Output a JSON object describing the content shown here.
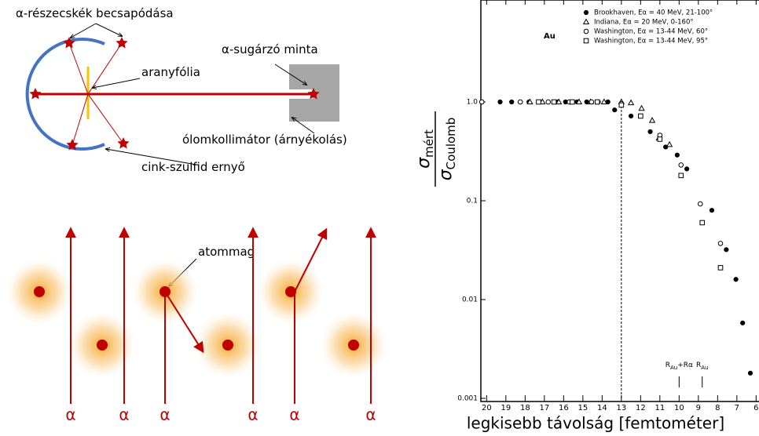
{
  "diagram": {
    "labels": {
      "impacts": "α-részecskék becsapódása",
      "foil": "aranyfólia",
      "source": "α-sugárzó minta",
      "collimator": "ólomkollimátor (árnyékolás)",
      "screen": "cink-szulfid ernyő",
      "nucleus": "atommag"
    },
    "alpha": [
      "α",
      "α",
      "α",
      "α",
      "α",
      "α"
    ]
  },
  "chart_data": {
    "type": "scatter",
    "x_label": "legkisebb távolság [femtométer]",
    "y_label": {
      "top": "σ",
      "top_sub": "mért",
      "bottom": "σ",
      "bottom_sub": "Coulomb"
    },
    "annotations": [
      {
        "text": "Au"
      },
      {
        "parts": [
          "R",
          "Au",
          "+Rα"
        ],
        "x": 10
      },
      {
        "parts": [
          "R",
          "Au"
        ],
        "x": 8.8
      }
    ],
    "xlim": [
      20.3,
      5.85
    ],
    "ylim": [
      0.001,
      10
    ],
    "log_y": true,
    "xticks": [
      20,
      19,
      18,
      17,
      16,
      15,
      14,
      13,
      12,
      11,
      10,
      9,
      8,
      7,
      6
    ],
    "yticks": [
      {
        "value": 1,
        "label": "1.0"
      },
      0.1,
      0.01,
      0.001
    ],
    "reference_x": 13,
    "series": [
      {
        "name": "Brookhaven, Eα = 40 MeV, 21-100°",
        "marker": "filled-circle",
        "color": "#000000",
        "x": [
          19.3,
          18.7,
          17.8,
          17.3,
          16.3,
          15.9,
          15.3,
          14.8,
          14.2,
          13.7,
          13.35,
          12.5,
          11.5,
          10.7,
          10.1,
          9.6,
          8.3,
          7.55,
          7.05,
          6.7,
          6.3
        ],
        "values": [
          1,
          1,
          1,
          1,
          1,
          1,
          1,
          1,
          1,
          1,
          0.83,
          0.72,
          0.5,
          0.35,
          0.29,
          0.21,
          0.08,
          0.032,
          0.016,
          0.0058,
          0.0018
        ]
      },
      {
        "name": "Indiana, Eα = 20 MeV, 0-160°",
        "marker": "triangle",
        "color": "#000000",
        "x": [
          17.75,
          17.1,
          16.25,
          15.2,
          14.6,
          13.9,
          13.0,
          12.5,
          11.95,
          11.4,
          11.05,
          10.5
        ],
        "values": [
          1,
          1,
          1,
          1,
          1,
          1,
          1,
          0.98,
          0.86,
          0.65,
          0.43,
          0.37
        ]
      },
      {
        "name": "Washington, Eα = 13-44 MeV, 60°",
        "marker": "circle",
        "color": "#000000",
        "x": [
          20.25,
          18.25,
          16.8,
          15.7,
          14.55,
          13.0,
          11.0,
          9.9,
          8.9,
          7.85
        ],
        "values": [
          1,
          1,
          1,
          1,
          1,
          0.96,
          0.46,
          0.23,
          0.093,
          0.037
        ]
      },
      {
        "name": "Washington, Eα = 13-44 MeV, 95°",
        "marker": "square",
        "color": "#000000",
        "x": [
          17.3,
          16.5,
          15.55,
          14.25,
          13.0,
          12.0,
          11.0,
          9.9,
          8.8,
          7.85
        ],
        "values": [
          1,
          1,
          1,
          1,
          0.93,
          0.72,
          0.42,
          0.18,
          0.06,
          0.021
        ]
      }
    ]
  }
}
